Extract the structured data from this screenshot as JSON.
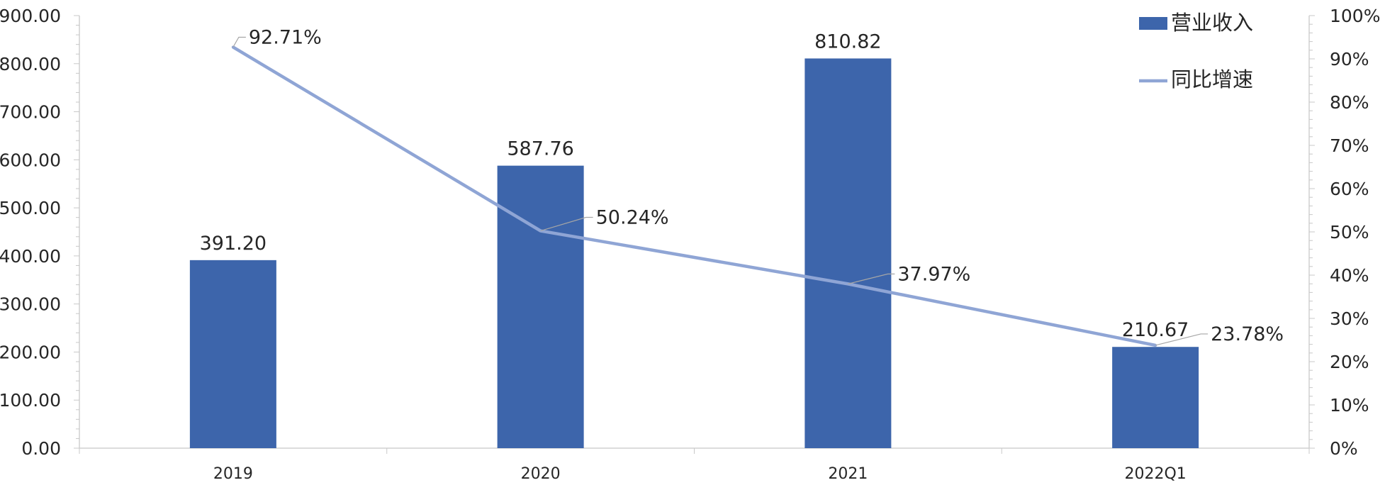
{
  "chart_data": {
    "type": "bar",
    "categories": [
      "2019",
      "2020",
      "2021",
      "2022Q1"
    ],
    "series": [
      {
        "name": "营业收入",
        "type": "bar",
        "axis": "left",
        "values": [
          391.2,
          587.76,
          810.82,
          210.67
        ],
        "labels": [
          "391.20",
          "587.76",
          "810.82",
          "210.67"
        ],
        "color": "#3d65ab"
      },
      {
        "name": "同比增速",
        "type": "line",
        "axis": "right",
        "values": [
          92.71,
          50.24,
          37.97,
          23.78
        ],
        "labels": [
          "92.71%",
          "50.24%",
          "37.97%",
          "23.78%"
        ],
        "color": "#8fa5d5"
      }
    ],
    "y_left": {
      "range": [
        0,
        900
      ],
      "ticks": [
        "0.00",
        "100.00",
        "200.00",
        "300.00",
        "400.00",
        "500.00",
        "600.00",
        "700.00",
        "800.00",
        "900.00"
      ]
    },
    "y_right": {
      "range": [
        0,
        100
      ],
      "ticks": [
        "0%",
        "10%",
        "20%",
        "30%",
        "40%",
        "50%",
        "60%",
        "70%",
        "80%",
        "90%",
        "100%"
      ]
    },
    "grid": false,
    "legend_position": "top-right"
  }
}
